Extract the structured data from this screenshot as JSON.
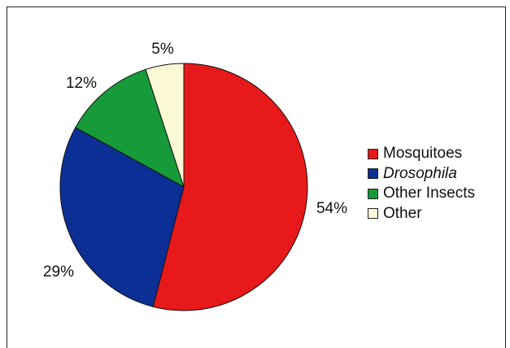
{
  "chart_data": {
    "type": "pie",
    "title": "",
    "start_angle_deg": 0,
    "direction": "clockwise",
    "series": [
      {
        "name": "",
        "slices": [
          {
            "label": "Mosquitoes",
            "value": 54,
            "value_label": "54%",
            "color": "#e8191a",
            "italic": false
          },
          {
            "label": "Drosophila",
            "value": 29,
            "value_label": "29%",
            "color": "#0c2f96",
            "italic": true
          },
          {
            "label": "Other Insects",
            "value": 12,
            "value_label": "12%",
            "color": "#179a3a",
            "italic": false
          },
          {
            "label": "Other",
            "value": 5,
            "value_label": "5%",
            "color": "#fbf8d6",
            "italic": false
          }
        ]
      }
    ],
    "legend": {
      "placement": "right"
    }
  }
}
